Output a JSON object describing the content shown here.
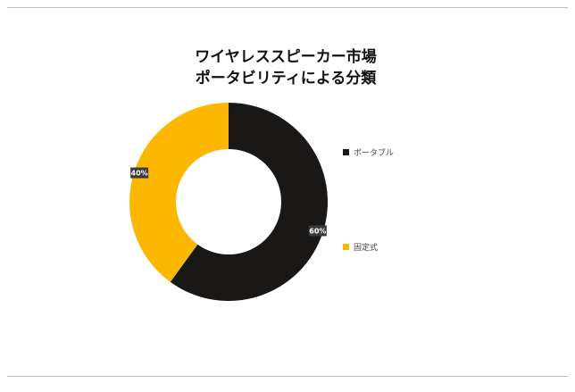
{
  "chart_data": {
    "type": "pie",
    "donut": true,
    "title_lines": [
      "ワイヤレススピーカー市場",
      "ポータビリティによる分類"
    ],
    "categories": [
      "ポータブル",
      "固定式"
    ],
    "values": [
      60,
      40
    ],
    "labels": [
      "60%",
      "40%"
    ],
    "colors": [
      "#1a1717",
      "#fcb800"
    ],
    "legend_position": "right"
  }
}
